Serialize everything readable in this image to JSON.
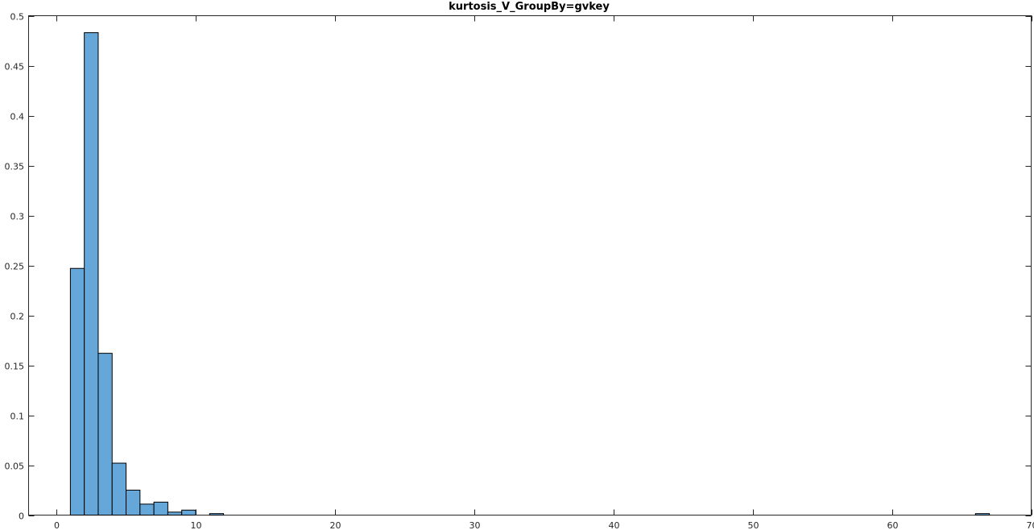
{
  "chart_data": {
    "type": "bar",
    "title": "kurtosis_V_GroupBy=gvkey",
    "xlabel": "",
    "ylabel": "",
    "xlim": [
      -2,
      70
    ],
    "ylim": [
      0,
      0.5
    ],
    "grid": false,
    "xticks": [
      0,
      10,
      20,
      30,
      40,
      50,
      60,
      70
    ],
    "yticks": [
      0,
      0.05,
      0.1,
      0.15,
      0.2,
      0.25,
      0.3,
      0.35,
      0.4,
      0.45,
      0.5
    ],
    "xtick_labels": [
      "0",
      "10",
      "20",
      "30",
      "40",
      "50",
      "60",
      "70"
    ],
    "ytick_labels": [
      "0",
      "0.05",
      "0.1",
      "0.15",
      "0.2",
      "0.25",
      "0.3",
      "0.35",
      "0.4",
      "0.45",
      "0.5"
    ],
    "bin_width": 1,
    "bins": [
      {
        "start": 1,
        "value": 0.247
      },
      {
        "start": 2,
        "value": 0.483
      },
      {
        "start": 3,
        "value": 0.162
      },
      {
        "start": 4,
        "value": 0.052
      },
      {
        "start": 5,
        "value": 0.025
      },
      {
        "start": 6,
        "value": 0.011
      },
      {
        "start": 7,
        "value": 0.013
      },
      {
        "start": 8,
        "value": 0.003
      },
      {
        "start": 9,
        "value": 0.005
      },
      {
        "start": 11,
        "value": 0.0015
      },
      {
        "start": 66,
        "value": 0.0015
      }
    ],
    "colors": {
      "bar_fill": "#64a7d8",
      "bar_edge": "#000000",
      "axis": "#262626"
    }
  }
}
